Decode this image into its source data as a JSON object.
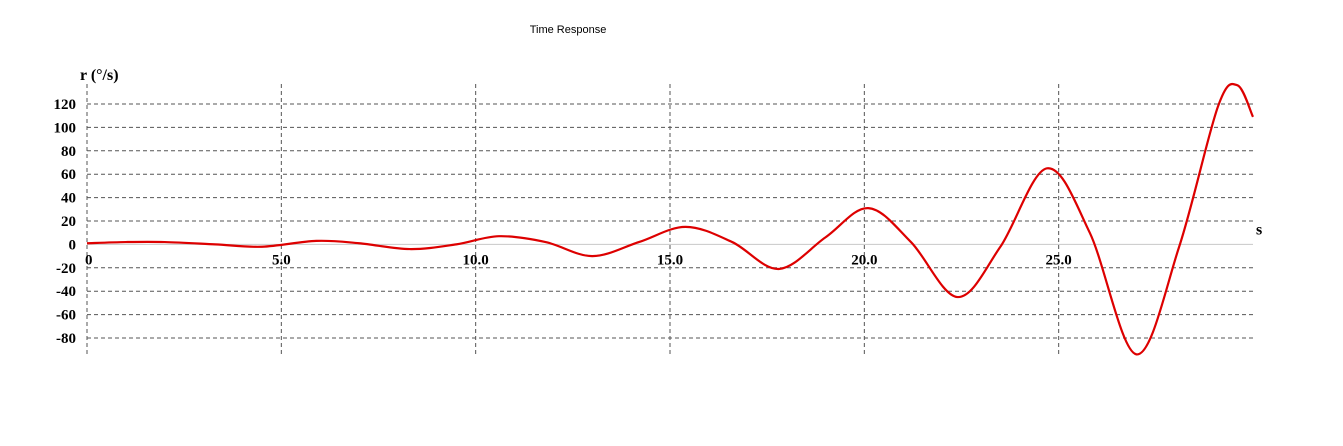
{
  "chart_data": {
    "type": "line",
    "title": "Time Response",
    "xlabel": "s",
    "ylabel": "r (°/s)",
    "xlim": [
      0,
      30
    ],
    "ylim": [
      -94,
      136
    ],
    "x_ticks": [
      0,
      5,
      10,
      15,
      20,
      25
    ],
    "x_tick_labels": [
      "0",
      "5.0",
      "10.0",
      "15.0",
      "20.0",
      "25.0"
    ],
    "y_ticks": [
      120,
      100,
      80,
      60,
      40,
      20,
      0,
      -20,
      -40,
      -60,
      -80
    ],
    "y_tick_labels": [
      "120",
      "100",
      "80",
      "60",
      "40",
      "20",
      "0",
      "-20",
      "-40",
      "-60",
      "-80"
    ],
    "grid": true,
    "colors": {
      "series": "#dd0000",
      "grid": "#555555",
      "axis": "#c8c8c8"
    },
    "series": [
      {
        "x": [
          0,
          1.0,
          2.0,
          3.3,
          4.5,
          5.9,
          7.0,
          8.3,
          9.5,
          10.6,
          11.8,
          13.0,
          14.2,
          15.4,
          16.6,
          17.8,
          19.0,
          20.1,
          21.2,
          22.4,
          23.5,
          24.7,
          25.8,
          27.0,
          28.1,
          29.1,
          29.6,
          30.0
        ],
        "y": [
          1,
          2,
          2,
          0,
          -2,
          3,
          1,
          -4,
          0,
          7,
          2,
          -10,
          2,
          15,
          2,
          -21,
          6,
          31,
          2,
          -45,
          -2,
          65,
          10,
          -94,
          -2,
          118,
          136,
          109
        ]
      }
    ]
  }
}
